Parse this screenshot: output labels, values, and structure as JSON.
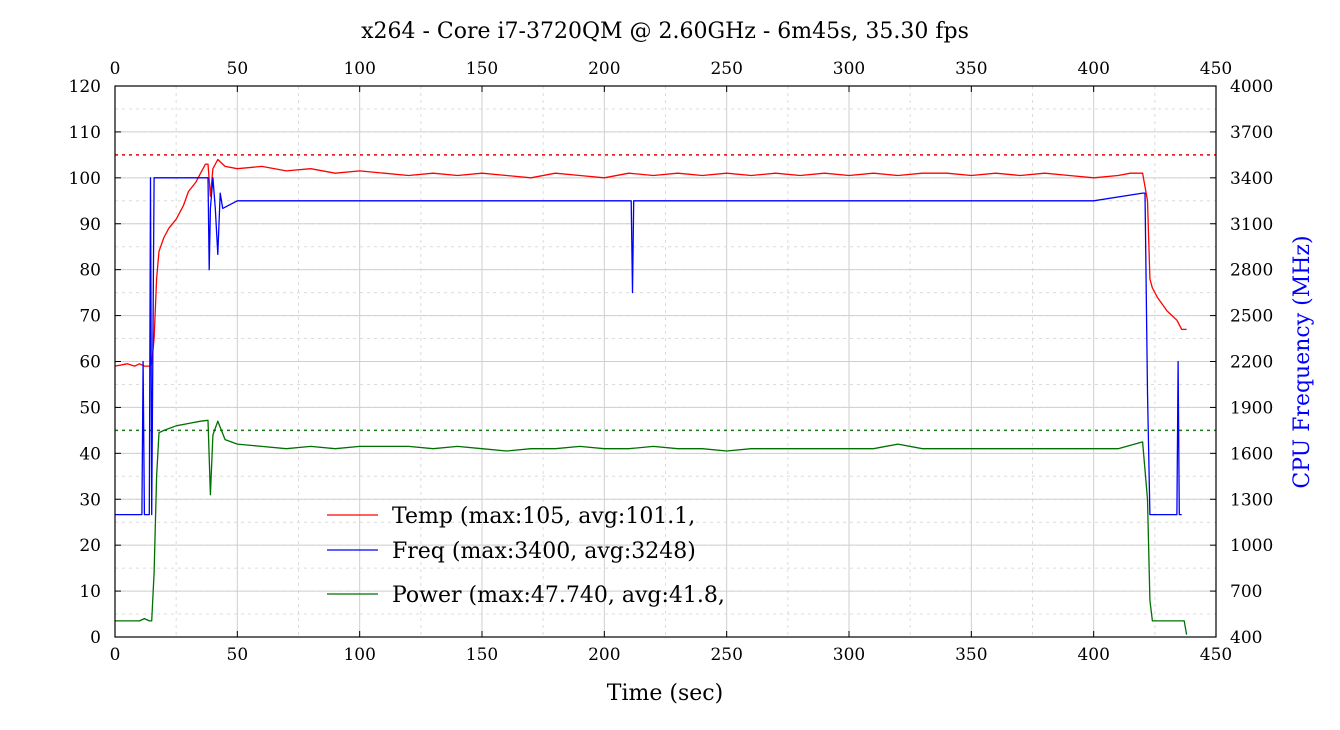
{
  "chart_data": {
    "type": "line",
    "title": "x264 - Core i7-3720QM @ 2.60GHz - 6m45s, 35.30 fps",
    "xlabel": "Time (sec)",
    "ylabel": "",
    "y2label": "CPU Frequency (MHz)",
    "xlim": [
      0,
      450
    ],
    "ylim": [
      0,
      120
    ],
    "y2lim": [
      400,
      4000
    ],
    "x_ticks": [
      0,
      50,
      100,
      150,
      200,
      250,
      300,
      350,
      400,
      450
    ],
    "y_ticks": [
      0,
      10,
      20,
      30,
      40,
      50,
      60,
      70,
      80,
      90,
      100,
      110,
      120
    ],
    "y2_ticks": [
      400,
      700,
      1000,
      1300,
      1600,
      1900,
      2200,
      2500,
      2800,
      3100,
      3400,
      3700,
      4000
    ],
    "grid": true,
    "legend_position": "lower-left",
    "reference_lines": [
      {
        "axis": "y",
        "value": 105,
        "color": "#e8000b",
        "style": "dotted"
      },
      {
        "axis": "y",
        "value": 45,
        "color": "#1a7a1a",
        "style": "dotted"
      }
    ],
    "series": [
      {
        "name": "Temp (max:105, avg:101.1,",
        "axis": "left",
        "color": "#ff0000",
        "x": [
          0,
          5,
          8,
          10,
          12,
          14,
          15,
          16,
          17,
          18,
          20,
          22,
          25,
          28,
          30,
          33,
          35,
          37,
          38,
          39,
          40,
          42,
          45,
          50,
          60,
          70,
          80,
          90,
          100,
          110,
          120,
          130,
          140,
          150,
          160,
          170,
          180,
          190,
          200,
          210,
          220,
          230,
          240,
          250,
          260,
          270,
          280,
          290,
          300,
          310,
          320,
          330,
          340,
          350,
          360,
          370,
          380,
          390,
          400,
          410,
          415,
          420,
          422,
          423,
          424,
          426,
          428,
          430,
          432,
          434,
          436,
          438
        ],
        "values": [
          59,
          59.5,
          59,
          59.5,
          59,
          59,
          59.5,
          65,
          78,
          84,
          87,
          89,
          91,
          94,
          97,
          99,
          101,
          103,
          103,
          96,
          102,
          104,
          102.5,
          102,
          102.5,
          101.5,
          102,
          101,
          101.5,
          101,
          100.5,
          101,
          100.5,
          101,
          100.5,
          100,
          101,
          100.5,
          100,
          101,
          100.5,
          101,
          100.5,
          101,
          100.5,
          101,
          100.5,
          101,
          100.5,
          101,
          100.5,
          101,
          101,
          100.5,
          101,
          100.5,
          101,
          100.5,
          100,
          100.5,
          101,
          101,
          95,
          78,
          76,
          74,
          72.5,
          71,
          70,
          69,
          67,
          67
        ]
      },
      {
        "name": "Freq (max:3400, avg:3248)",
        "axis": "right",
        "color": "#0000ff",
        "x": [
          0,
          11,
          11.5,
          12,
          14,
          14.5,
          15,
          16,
          17,
          38,
          38.5,
          39,
          40,
          41,
          42,
          43,
          44,
          50,
          100,
          150,
          200,
          211,
          211.5,
          212,
          250,
          300,
          350,
          400,
          420,
          421,
          422,
          423,
          434,
          434.5,
          435,
          436
        ],
        "values": [
          1200,
          1200,
          2200,
          1200,
          1200,
          3400,
          1200,
          3400,
          3400,
          3400,
          2800,
          3200,
          3400,
          3200,
          2900,
          3300,
          3200,
          3250,
          3250,
          3250,
          3250,
          3250,
          2650,
          3250,
          3250,
          3250,
          3250,
          3250,
          3300,
          3300,
          2000,
          1200,
          1200,
          2200,
          1200,
          1200
        ]
      },
      {
        "name": "Power (max:47.740, avg:41.8,",
        "axis": "left",
        "color": "#007000",
        "x": [
          0,
          5,
          10,
          12,
          14,
          15,
          16,
          17,
          18,
          20,
          25,
          30,
          35,
          38,
          39,
          40,
          42,
          45,
          50,
          60,
          70,
          80,
          90,
          100,
          110,
          120,
          130,
          140,
          150,
          160,
          170,
          180,
          190,
          200,
          210,
          220,
          230,
          240,
          250,
          260,
          270,
          280,
          290,
          300,
          310,
          320,
          330,
          340,
          350,
          360,
          370,
          380,
          390,
          400,
          410,
          420,
          422,
          423,
          424,
          425,
          430,
          435,
          437,
          438
        ],
        "values": [
          3.5,
          3.5,
          3.5,
          4,
          3.5,
          3.5,
          14,
          35,
          44.5,
          45,
          46,
          46.5,
          47,
          47.2,
          31,
          44,
          47,
          43,
          42,
          41.5,
          41,
          41.5,
          41,
          41.5,
          41.5,
          41.5,
          41,
          41.5,
          41,
          40.5,
          41,
          41,
          41.5,
          41,
          41,
          41.5,
          41,
          41,
          40.5,
          41,
          41,
          41,
          41,
          41,
          41,
          42,
          41,
          41,
          41,
          41,
          41,
          41,
          41,
          41,
          41,
          42.5,
          30,
          8,
          3.5,
          3.5,
          3.5,
          3.5,
          3.5,
          0.5
        ]
      }
    ]
  }
}
